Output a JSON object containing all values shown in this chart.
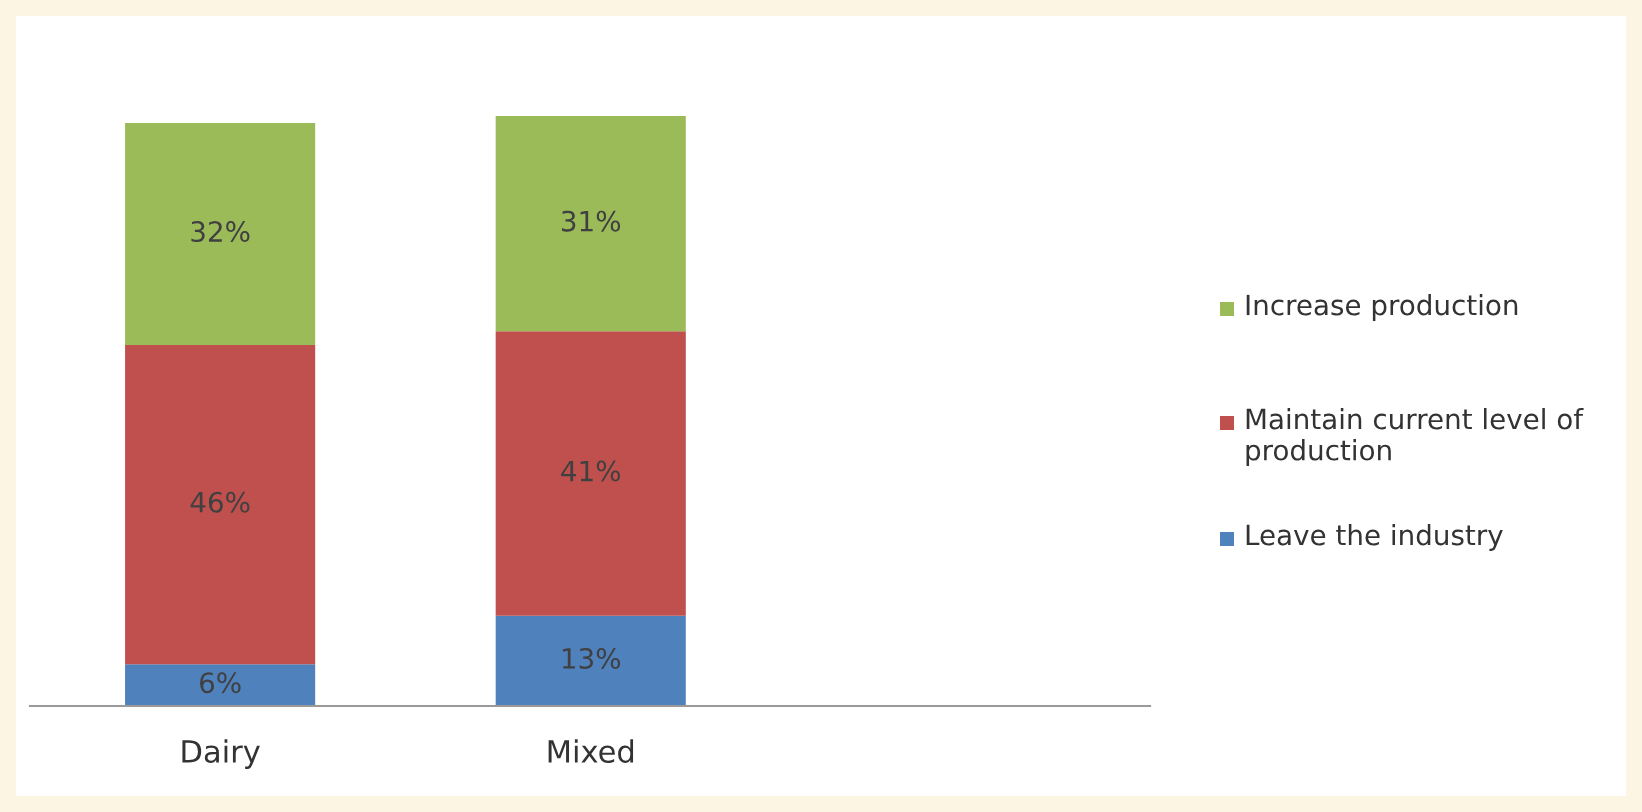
{
  "chart_data": {
    "type": "bar",
    "stacked": true,
    "categories": [
      "Dairy",
      "Mixed"
    ],
    "series": [
      {
        "name": "Leave the industry",
        "color": "#4f81bd",
        "values": [
          6,
          13
        ],
        "value_labels": [
          "6%",
          "13%"
        ]
      },
      {
        "name": "Maintain current level of production",
        "color": "#c0504d",
        "values": [
          46,
          41
        ],
        "value_labels": [
          "46%",
          "41%"
        ]
      },
      {
        "name": "Increase production",
        "color": "#9bbb59",
        "values": [
          32,
          31
        ],
        "value_labels": [
          "32%",
          "31%"
        ]
      }
    ],
    "legend": "right",
    "grid": false
  }
}
